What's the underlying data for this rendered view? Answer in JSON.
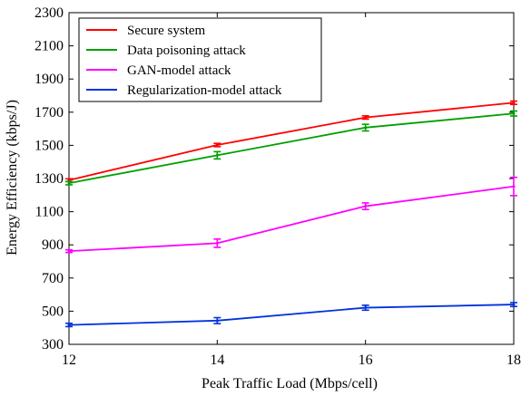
{
  "chart_data": {
    "type": "line",
    "xlabel": "Peak Traffic Load (Mbps/cell)",
    "ylabel": "Energy Efficiency (kbps/J)",
    "x": [
      12,
      14,
      16,
      18
    ],
    "xticks": [
      12,
      14,
      16,
      18
    ],
    "yticks": [
      300,
      500,
      700,
      900,
      1100,
      1300,
      1500,
      1700,
      1900,
      2100,
      2300
    ],
    "xlim": [
      12,
      18
    ],
    "ylim": [
      300,
      2300
    ],
    "grid": false,
    "legend_position": "top-left",
    "series": [
      {
        "name": "Secure system",
        "color": "#ff0000",
        "values": [
          1290,
          1502,
          1668,
          1757
        ],
        "errors": [
          8,
          10,
          10,
          10
        ]
      },
      {
        "name": "Data poisoning attack",
        "color": "#00a000",
        "values": [
          1272,
          1440,
          1607,
          1692
        ],
        "errors": [
          10,
          22,
          20,
          15
        ]
      },
      {
        "name": "GAN-model attack",
        "color": "#ff00ff",
        "values": [
          862,
          910,
          1133,
          1252
        ],
        "errors": [
          8,
          25,
          20,
          55
        ]
      },
      {
        "name": "Regularization-model attack",
        "color": "#0033dd",
        "values": [
          417,
          443,
          521,
          540
        ],
        "errors": [
          10,
          18,
          15,
          12
        ]
      }
    ]
  }
}
